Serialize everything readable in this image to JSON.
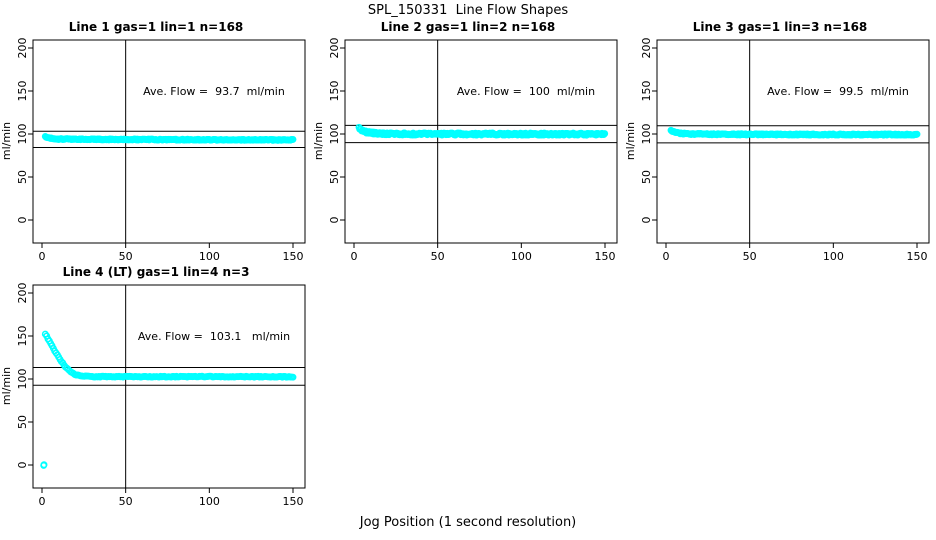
{
  "page": {
    "title": "SPL_150331  Line Flow Shapes",
    "shared_xlabel": "Jog Position (1 second resolution)"
  },
  "colors": {
    "points": "#00FFFF",
    "axis": "#000000",
    "background": "#FFFFFF"
  },
  "chart_data": [
    {
      "type": "scatter",
      "title": "Line 1 gas=1 lin=1 n=168",
      "ylabel": "ml/min",
      "ave_flow": 93.7,
      "ave_flow_label": "Ave. Flow =  93.7  ml/min",
      "x_ticks": [
        0,
        50,
        100,
        150
      ],
      "y_ticks": [
        0,
        50,
        100,
        150,
        200
      ],
      "vline": 50,
      "hlines": [
        103.1,
        84.3
      ],
      "x_range": [
        2,
        150
      ],
      "x_step": 0.5,
      "jitter": 0.6,
      "keypoints": [
        [
          2,
          96.8
        ],
        [
          3,
          95.8
        ],
        [
          4,
          95.2
        ],
        [
          6,
          94.6
        ],
        [
          10,
          94.2
        ],
        [
          20,
          93.9
        ],
        [
          40,
          93.7
        ],
        [
          80,
          93.4
        ],
        [
          120,
          93.2
        ],
        [
          150,
          93.1
        ]
      ],
      "outliers": []
    },
    {
      "type": "scatter",
      "title": "Line 2 gas=1 lin=2 n=168",
      "ylabel": "ml/min",
      "ave_flow": 100,
      "ave_flow_label": "Ave. Flow =  100  ml/min",
      "x_ticks": [
        0,
        50,
        100,
        150
      ],
      "y_ticks": [
        0,
        50,
        100,
        150,
        200
      ],
      "vline": 50,
      "hlines": [
        110,
        90
      ],
      "x_range": [
        3,
        150
      ],
      "x_step": 0.4,
      "jitter": 1.2,
      "keypoints": [
        [
          3,
          107.5
        ],
        [
          4,
          105.5
        ],
        [
          5,
          104
        ],
        [
          6,
          103
        ],
        [
          8,
          102
        ],
        [
          10,
          101.4
        ],
        [
          14,
          100.7
        ],
        [
          20,
          100.2
        ],
        [
          30,
          100
        ],
        [
          60,
          99.9
        ],
        [
          100,
          99.9
        ],
        [
          150,
          99.8
        ]
      ],
      "outliers": []
    },
    {
      "type": "scatter",
      "title": "Line 3 gas=1 lin=3 n=168",
      "ylabel": "ml/min",
      "ave_flow": 99.5,
      "ave_flow_label": "Ave. Flow =  99.5  ml/min",
      "x_ticks": [
        0,
        50,
        100,
        150
      ],
      "y_ticks": [
        0,
        50,
        100,
        150,
        200
      ],
      "vline": 50,
      "hlines": [
        109.5,
        89.6
      ],
      "x_range": [
        3,
        150
      ],
      "x_step": 0.5,
      "jitter": 0.7,
      "keypoints": [
        [
          3,
          104
        ],
        [
          4,
          102.8
        ],
        [
          6,
          101.6
        ],
        [
          9,
          100.8
        ],
        [
          14,
          100.2
        ],
        [
          25,
          99.8
        ],
        [
          50,
          99.6
        ],
        [
          100,
          99.4
        ],
        [
          150,
          99.3
        ]
      ],
      "outliers": []
    },
    {
      "type": "scatter",
      "title": "Line 4 (LT) gas=1 lin=4 n=3",
      "ylabel": "ml/min",
      "ave_flow": 103.1,
      "ave_flow_label": "Ave. Flow =  103.1   ml/min",
      "x_ticks": [
        0,
        50,
        100,
        150
      ],
      "y_ticks": [
        0,
        50,
        100,
        150,
        200
      ],
      "vline": 50,
      "hlines": [
        113.4,
        92.8
      ],
      "x_range": [
        2,
        150
      ],
      "x_step": 0.8,
      "jitter": 0.5,
      "keypoints": [
        [
          2,
          152
        ],
        [
          3,
          149
        ],
        [
          4,
          145.5
        ],
        [
          5,
          142
        ],
        [
          6,
          138.5
        ],
        [
          7,
          135
        ],
        [
          8,
          131.5
        ],
        [
          9,
          128.5
        ],
        [
          10,
          125.5
        ],
        [
          11,
          122.5
        ],
        [
          12,
          119.5
        ],
        [
          13,
          117
        ],
        [
          14,
          114.5
        ],
        [
          15,
          112.5
        ],
        [
          16,
          110.5
        ],
        [
          17,
          108.8
        ],
        [
          18,
          107.3
        ],
        [
          19,
          106
        ],
        [
          20,
          105
        ],
        [
          22,
          104
        ],
        [
          25,
          103.3
        ],
        [
          30,
          102.9
        ],
        [
          40,
          102.7
        ],
        [
          60,
          102.7
        ],
        [
          100,
          102.8
        ],
        [
          150,
          102.5
        ]
      ],
      "outliers": [
        [
          1,
          -0.5
        ],
        [
          1.2,
          0.3
        ]
      ]
    }
  ],
  "layout_hints": {
    "xlim": [
      -8,
      156
    ],
    "ylim": [
      -27,
      209
    ],
    "grid": "off",
    "marker": "open-circle"
  }
}
